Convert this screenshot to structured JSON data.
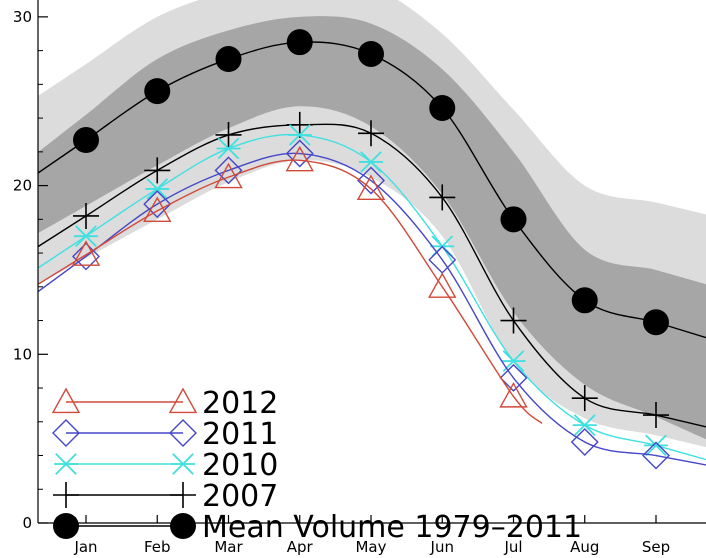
{
  "chart_data": {
    "type": "line",
    "title": "",
    "xlabel": "",
    "ylabel": "",
    "categories": [
      "Jan",
      "Feb",
      "Mar",
      "Apr",
      "May",
      "Jun",
      "Jul",
      "Aug",
      "Sep"
    ],
    "ylim": [
      0,
      31
    ],
    "y_ticks": [
      "0",
      "10",
      "20",
      "30"
    ],
    "grid": false,
    "legend_position": "bottom-left",
    "bands": [
      {
        "name": "outer",
        "color": "#dcdcdc",
        "upper": [
          27.2,
          30.0,
          31.5,
          32.2,
          31.8,
          29.0,
          24.5,
          20.0,
          19.0
        ],
        "lower": [
          15.7,
          18.0,
          20.2,
          21.5,
          20.5,
          17.0,
          9.5,
          6.2,
          5.2
        ]
      },
      {
        "name": "inner",
        "color": "#a6a6a6",
        "upper": [
          24.2,
          27.5,
          29.2,
          30.0,
          29.6,
          26.9,
          22.0,
          16.2,
          15.0
        ],
        "lower": [
          18.8,
          21.2,
          23.4,
          24.7,
          23.5,
          19.5,
          12.5,
          8.2,
          6.3
        ]
      }
    ],
    "series": [
      {
        "name": "Mean Volume 1979-2011",
        "color": "#000000",
        "marker": "circle",
        "values": [
          22.7,
          25.6,
          27.5,
          28.5,
          27.8,
          24.6,
          18.0,
          13.2,
          11.9
        ]
      },
      {
        "name": "2007",
        "color": "#000000",
        "marker": "plus",
        "values": [
          18.2,
          20.9,
          23.0,
          23.6,
          23.1,
          19.3,
          12.0,
          7.4,
          6.4
        ]
      },
      {
        "name": "2010",
        "color": "#40e0e0",
        "marker": "asterisk",
        "values": [
          17.0,
          19.8,
          22.2,
          23.0,
          21.4,
          16.4,
          9.6,
          5.8,
          4.6
        ]
      },
      {
        "name": "2011",
        "color": "#4646c8",
        "marker": "diamond",
        "values": [
          15.8,
          18.9,
          20.9,
          21.9,
          20.3,
          15.6,
          8.6,
          4.8,
          4.0
        ]
      },
      {
        "name": "2012",
        "color": "#d04a3a",
        "marker": "triangle",
        "values": [
          15.9,
          18.5,
          20.5,
          21.5,
          19.8,
          14.0,
          7.5,
          null,
          null
        ],
        "extend_to": 6.4,
        "extend_value": 5.9
      }
    ],
    "legend_entries": [
      {
        "label": "2012",
        "series": "2012"
      },
      {
        "label": "2011",
        "series": "2011"
      },
      {
        "label": "2010",
        "series": "2010"
      },
      {
        "label": "2007",
        "series": "2007"
      },
      {
        "label": "Mean Volume 1979–2011",
        "series": "Mean Volume 1979-2011"
      }
    ]
  }
}
